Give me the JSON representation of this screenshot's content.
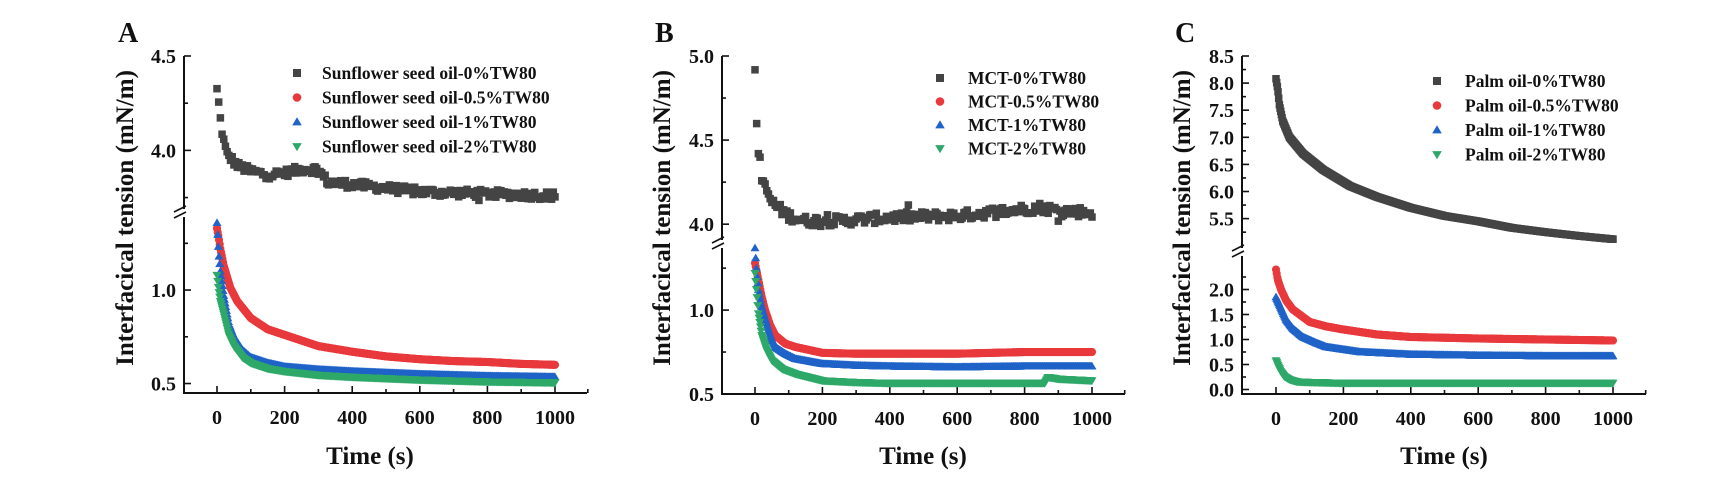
{
  "chart_data": [
    {
      "type": "scatter",
      "panel": "A",
      "title": "",
      "xlabel": "Time (s)",
      "ylabel": "Interfacical tension (mN/m)",
      "xlim": [
        -80,
        1100
      ],
      "xticks": [
        0,
        200,
        400,
        600,
        800,
        1000
      ],
      "x_tick_labels": [
        "0",
        "200",
        "400",
        "600",
        "800",
        "1000"
      ],
      "y_axis_break": true,
      "y_segments": [
        {
          "range": [
            0.46,
            1.38
          ],
          "major_ticks": [
            0.5,
            1.0
          ],
          "tick_labels": [
            "0.5",
            "1.0"
          ],
          "minor_ticks": [
            0.75,
            1.25
          ]
        },
        {
          "range": [
            3.7,
            4.5
          ],
          "major_ticks": [
            4.0,
            4.5
          ],
          "tick_labels": [
            "4.0",
            "4.5"
          ],
          "minor_ticks": [
            3.75,
            4.25
          ]
        }
      ],
      "legend_position": "top-right",
      "grid": false,
      "series": [
        {
          "name": "Sunflower seed oil-0%TW80",
          "marker": "square",
          "color": "#444444",
          "noisy": true,
          "segment": 1,
          "points": [
            [
              0,
              4.32
            ],
            [
              4,
              4.27
            ],
            [
              8,
              4.19
            ],
            [
              15,
              4.1
            ],
            [
              22,
              4.03
            ],
            [
              30,
              3.98
            ],
            [
              45,
              3.95
            ],
            [
              60,
              3.92
            ],
            [
              100,
              3.89
            ],
            [
              150,
              3.87
            ],
            [
              200,
              3.88
            ],
            [
              250,
              3.9
            ],
            [
              300,
              3.9
            ],
            [
              315,
              3.86
            ],
            [
              330,
              3.83
            ],
            [
              400,
              3.82
            ],
            [
              500,
              3.8
            ],
            [
              600,
              3.78
            ],
            [
              700,
              3.775
            ],
            [
              800,
              3.77
            ],
            [
              900,
              3.765
            ],
            [
              1000,
              3.76
            ]
          ]
        },
        {
          "name": "Sunflower seed oil-0.5%TW80",
          "marker": "circle",
          "color": "#e8393c",
          "noisy": false,
          "segment": 0,
          "points": [
            [
              0,
              1.33
            ],
            [
              5,
              1.28
            ],
            [
              10,
              1.22
            ],
            [
              20,
              1.13
            ],
            [
              40,
              1.01
            ],
            [
              60,
              0.94
            ],
            [
              100,
              0.85
            ],
            [
              150,
              0.79
            ],
            [
              200,
              0.76
            ],
            [
              300,
              0.7
            ],
            [
              400,
              0.67
            ],
            [
              500,
              0.645
            ],
            [
              600,
              0.63
            ],
            [
              700,
              0.62
            ],
            [
              800,
              0.615
            ],
            [
              900,
              0.605
            ],
            [
              1000,
              0.6
            ]
          ]
        },
        {
          "name": "Sunflower seed oil-1%TW80",
          "marker": "triangle-up",
          "color": "#1f63c8",
          "noisy": false,
          "segment": 0,
          "points": [
            [
              0,
              1.36
            ],
            [
              5,
              1.2
            ],
            [
              10,
              1.1
            ],
            [
              20,
              0.97
            ],
            [
              35,
              0.82
            ],
            [
              50,
              0.75
            ],
            [
              75,
              0.68
            ],
            [
              100,
              0.64
            ],
            [
              150,
              0.61
            ],
            [
              200,
              0.59
            ],
            [
              300,
              0.575
            ],
            [
              400,
              0.565
            ],
            [
              600,
              0.55
            ],
            [
              800,
              0.54
            ],
            [
              1000,
              0.535
            ]
          ]
        },
        {
          "name": "Sunflower seed oil-2%TW80",
          "marker": "triangle-down",
          "color": "#2ea868",
          "noisy": false,
          "segment": 0,
          "points": [
            [
              0,
              1.08
            ],
            [
              5,
              1.0
            ],
            [
              10,
              0.94
            ],
            [
              20,
              0.87
            ],
            [
              35,
              0.76
            ],
            [
              50,
              0.7
            ],
            [
              75,
              0.64
            ],
            [
              100,
              0.61
            ],
            [
              150,
              0.58
            ],
            [
              200,
              0.565
            ],
            [
              300,
              0.545
            ],
            [
              400,
              0.535
            ],
            [
              600,
              0.52
            ],
            [
              800,
              0.51
            ],
            [
              1000,
              0.505
            ]
          ]
        }
      ]
    },
    {
      "type": "scatter",
      "panel": "B",
      "title": "",
      "xlabel": "Time (s)",
      "ylabel": "Interfacical tension (mN/m)",
      "xlim": [
        -80,
        1100
      ],
      "xticks": [
        0,
        200,
        400,
        600,
        800,
        1000
      ],
      "x_tick_labels": [
        "0",
        "200",
        "400",
        "600",
        "800",
        "1000"
      ],
      "y_axis_break": true,
      "y_segments": [
        {
          "range": [
            0.5,
            1.37
          ],
          "major_ticks": [
            0.5,
            1.0
          ],
          "tick_labels": [
            "0.5",
            "1.0"
          ],
          "minor_ticks": [
            0.75,
            1.25
          ]
        },
        {
          "range": [
            3.9,
            5.0
          ],
          "major_ticks": [
            4.0,
            4.5,
            5.0
          ],
          "tick_labels": [
            "4.0",
            "4.5",
            "5.0"
          ],
          "minor_ticks": [
            4.25,
            4.75
          ]
        }
      ],
      "legend_position": "top-right",
      "grid": false,
      "series": [
        {
          "name": "MCT-0%TW80",
          "marker": "square",
          "color": "#444444",
          "noisy": true,
          "segment": 1,
          "points": [
            [
              0,
              4.93
            ],
            [
              3,
              4.72
            ],
            [
              6,
              4.55
            ],
            [
              8,
              4.49
            ],
            [
              10,
              4.42
            ],
            [
              15,
              4.4
            ],
            [
              20,
              4.25
            ],
            [
              35,
              4.2
            ],
            [
              50,
              4.13
            ],
            [
              80,
              4.08
            ],
            [
              100,
              4.05
            ],
            [
              150,
              4.02
            ],
            [
              250,
              4.02
            ],
            [
              400,
              4.04
            ],
            [
              600,
              4.05
            ],
            [
              750,
              4.08
            ],
            [
              850,
              4.1
            ],
            [
              900,
              4.08
            ],
            [
              1000,
              4.07
            ]
          ]
        },
        {
          "name": "MCT-0.5%TW80",
          "marker": "circle",
          "color": "#e8393c",
          "noisy": false,
          "segment": 0,
          "points": [
            [
              0,
              1.28
            ],
            [
              10,
              1.18
            ],
            [
              20,
              1.08
            ],
            [
              30,
              1.0
            ],
            [
              45,
              0.91
            ],
            [
              60,
              0.85
            ],
            [
              90,
              0.8
            ],
            [
              120,
              0.78
            ],
            [
              200,
              0.745
            ],
            [
              300,
              0.74
            ],
            [
              400,
              0.74
            ],
            [
              600,
              0.74
            ],
            [
              800,
              0.75
            ],
            [
              1000,
              0.75
            ]
          ]
        },
        {
          "name": "MCT-1%TW80",
          "marker": "triangle-up",
          "color": "#1f63c8",
          "noisy": false,
          "segment": 0,
          "points": [
            [
              0,
              1.37
            ],
            [
              5,
              1.22
            ],
            [
              10,
              1.12
            ],
            [
              20,
              1.02
            ],
            [
              30,
              0.95
            ],
            [
              45,
              0.85
            ],
            [
              60,
              0.78
            ],
            [
              90,
              0.74
            ],
            [
              120,
              0.71
            ],
            [
              200,
              0.68
            ],
            [
              300,
              0.67
            ],
            [
              400,
              0.665
            ],
            [
              600,
              0.66
            ],
            [
              800,
              0.665
            ],
            [
              1000,
              0.665
            ]
          ]
        },
        {
          "name": "MCT-2%TW80",
          "marker": "triangle-down",
          "color": "#2ea868",
          "noisy": false,
          "segment": 0,
          "points": [
            [
              0,
              1.22
            ],
            [
              5,
              1.1
            ],
            [
              10,
              0.98
            ],
            [
              20,
              0.85
            ],
            [
              35,
              0.76
            ],
            [
              50,
              0.7
            ],
            [
              80,
              0.65
            ],
            [
              120,
              0.62
            ],
            [
              200,
              0.58
            ],
            [
              300,
              0.57
            ],
            [
              400,
              0.565
            ],
            [
              600,
              0.565
            ],
            [
              860,
              0.565
            ],
            [
              870,
              0.6
            ],
            [
              900,
              0.59
            ],
            [
              1000,
              0.58
            ]
          ]
        }
      ]
    },
    {
      "type": "scatter",
      "panel": "C",
      "title": "",
      "xlabel": "Time (s)",
      "ylabel": "Interfacical tension (mN/m)",
      "xlim": [
        -80,
        1100
      ],
      "xticks": [
        0,
        200,
        400,
        600,
        800,
        1000
      ],
      "x_tick_labels": [
        "0",
        "200",
        "400",
        "600",
        "800",
        "1000"
      ],
      "y_axis_break": true,
      "y_segments": [
        {
          "range": [
            -0.05,
            2.45
          ],
          "major_ticks": [
            0.0,
            0.5,
            1.0,
            1.5,
            2.0
          ],
          "tick_labels": [
            "0.0",
            "0.5",
            "1.0",
            "1.5",
            "2.0"
          ],
          "minor_ticks": [
            0.25,
            0.75,
            1.25,
            1.75,
            2.25
          ]
        },
        {
          "range": [
            5.05,
            8.5
          ],
          "major_ticks": [
            5.5,
            6.0,
            6.5,
            7.0,
            7.5,
            8.0,
            8.5
          ],
          "tick_labels": [
            "5.5",
            "6.0",
            "6.5",
            "7.0",
            "7.5",
            "8.0",
            "8.5"
          ],
          "minor_ticks": [
            5.25,
            5.75,
            6.25,
            6.75,
            7.25,
            7.75,
            8.25
          ]
        }
      ],
      "legend_position": "top-right",
      "grid": false,
      "series": [
        {
          "name": "Palm oil-0%TW80",
          "marker": "square",
          "color": "#444444",
          "noisy": false,
          "segment": 1,
          "points": [
            [
              0,
              8.08
            ],
            [
              5,
              7.9
            ],
            [
              10,
              7.6
            ],
            [
              20,
              7.3
            ],
            [
              40,
              7.0
            ],
            [
              80,
              6.7
            ],
            [
              140,
              6.4
            ],
            [
              220,
              6.1
            ],
            [
              300,
              5.9
            ],
            [
              400,
              5.7
            ],
            [
              500,
              5.55
            ],
            [
              600,
              5.45
            ],
            [
              700,
              5.33
            ],
            [
              800,
              5.25
            ],
            [
              900,
              5.18
            ],
            [
              1000,
              5.12
            ]
          ]
        },
        {
          "name": "Palm oil-0.5%TW80",
          "marker": "circle",
          "color": "#e8393c",
          "noisy": false,
          "segment": 0,
          "points": [
            [
              0,
              2.4
            ],
            [
              5,
              2.2
            ],
            [
              15,
              2.0
            ],
            [
              30,
              1.78
            ],
            [
              50,
              1.6
            ],
            [
              100,
              1.35
            ],
            [
              150,
              1.26
            ],
            [
              200,
              1.2
            ],
            [
              300,
              1.1
            ],
            [
              400,
              1.05
            ],
            [
              600,
              1.02
            ],
            [
              800,
              1.0
            ],
            [
              1000,
              0.98
            ]
          ]
        },
        {
          "name": "Palm oil-1%TW80",
          "marker": "triangle-up",
          "color": "#1f63c8",
          "noisy": false,
          "segment": 0,
          "points": [
            [
              0,
              1.85
            ],
            [
              10,
              1.7
            ],
            [
              30,
              1.4
            ],
            [
              50,
              1.22
            ],
            [
              80,
              1.05
            ],
            [
              120,
              0.93
            ],
            [
              150,
              0.85
            ],
            [
              250,
              0.75
            ],
            [
              400,
              0.7
            ],
            [
              600,
              0.68
            ],
            [
              800,
              0.67
            ],
            [
              1000,
              0.67
            ]
          ]
        },
        {
          "name": "Palm oil-2%TW80",
          "marker": "triangle-down",
          "color": "#2ea868",
          "noisy": false,
          "segment": 0,
          "points": [
            [
              0,
              0.58
            ],
            [
              8,
              0.45
            ],
            [
              15,
              0.35
            ],
            [
              25,
              0.26
            ],
            [
              40,
              0.2
            ],
            [
              60,
              0.16
            ],
            [
              80,
              0.15
            ],
            [
              200,
              0.13
            ],
            [
              600,
              0.13
            ],
            [
              1000,
              0.13
            ]
          ]
        }
      ]
    }
  ]
}
